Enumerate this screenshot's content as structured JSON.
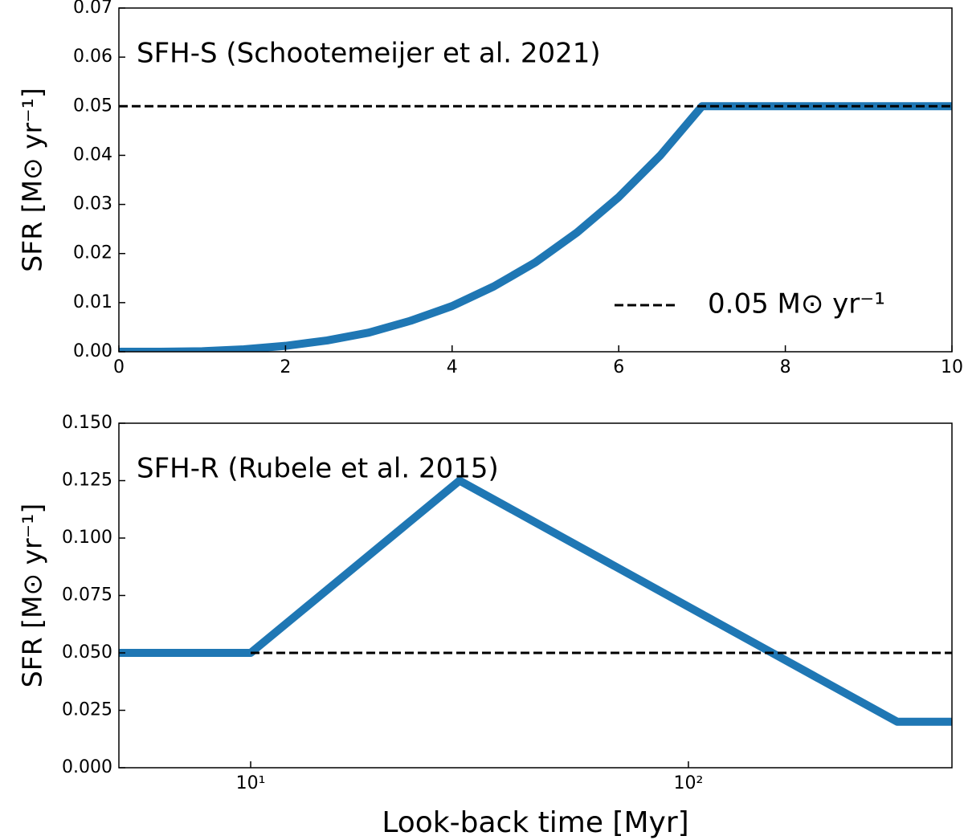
{
  "chart_data": [
    {
      "type": "line",
      "annotation": "SFH-S (Schootemeijer et al. 2021)",
      "y_label": "SFR [M⊙ yr⁻¹]",
      "xlim": [
        0,
        10
      ],
      "xticks": [
        0,
        2,
        4,
        6,
        8,
        10
      ],
      "ylim": [
        0,
        0.07
      ],
      "yticks": [
        {
          "value": 0,
          "label": "0.00"
        },
        {
          "value": 0.01,
          "label": "0.01"
        },
        {
          "value": 0.02,
          "label": "0.02"
        },
        {
          "value": 0.03,
          "label": "0.03"
        },
        {
          "value": 0.04,
          "label": "0.04"
        },
        {
          "value": 0.05,
          "label": "0.05"
        },
        {
          "value": 0.06,
          "label": "0.06"
        },
        {
          "value": 0.07,
          "label": "0.07"
        }
      ],
      "legend": "lower right",
      "series": [
        {
          "color": "#1f77b4",
          "style": "solid",
          "x": [
            0,
            0.5,
            1,
            1.5,
            2,
            2.5,
            3,
            3.5,
            4,
            4.5,
            5,
            5.5,
            6,
            6.5,
            7,
            8,
            9,
            10
          ],
          "values": [
            0,
            0,
            0.0001,
            0.0005,
            0.0012,
            0.0023,
            0.0039,
            0.0063,
            0.0093,
            0.0133,
            0.0182,
            0.0243,
            0.0315,
            0.04,
            0.05,
            0.05,
            0.05,
            0.05
          ]
        },
        {
          "name": "0.05 M⊙ yr⁻¹",
          "color": "#000000",
          "style": "dashed",
          "x": [
            0,
            10
          ],
          "values": [
            0.05,
            0.05
          ]
        }
      ]
    },
    {
      "type": "line",
      "annotation": "SFH-R (Rubele et al. 2015)",
      "y_label": "SFR [M⊙ yr⁻¹]",
      "x_label": "Look-back time [Myr]",
      "xscale": "log",
      "xlim": [
        5,
        400
      ],
      "xticks": [
        {
          "value": 10,
          "label": "10¹"
        },
        {
          "value": 100,
          "label": "10²"
        }
      ],
      "ylim": [
        0,
        0.15
      ],
      "yticks": [
        {
          "value": 0,
          "label": "0.000"
        },
        {
          "value": 0.025,
          "label": "0.025"
        },
        {
          "value": 0.05,
          "label": "0.050"
        },
        {
          "value": 0.075,
          "label": "0.075"
        },
        {
          "value": 0.1,
          "label": "0.100"
        },
        {
          "value": 0.125,
          "label": "0.125"
        },
        {
          "value": 0.15,
          "label": "0.150"
        }
      ],
      "series": [
        {
          "color": "#1f77b4",
          "style": "solid",
          "x": [
            5,
            10,
            30,
            300,
            400
          ],
          "values": [
            0.05,
            0.05,
            0.125,
            0.02,
            0.02
          ]
        },
        {
          "color": "#000000",
          "style": "dashed",
          "x": [
            10,
            400
          ],
          "values": [
            0.05,
            0.05
          ]
        }
      ]
    }
  ]
}
